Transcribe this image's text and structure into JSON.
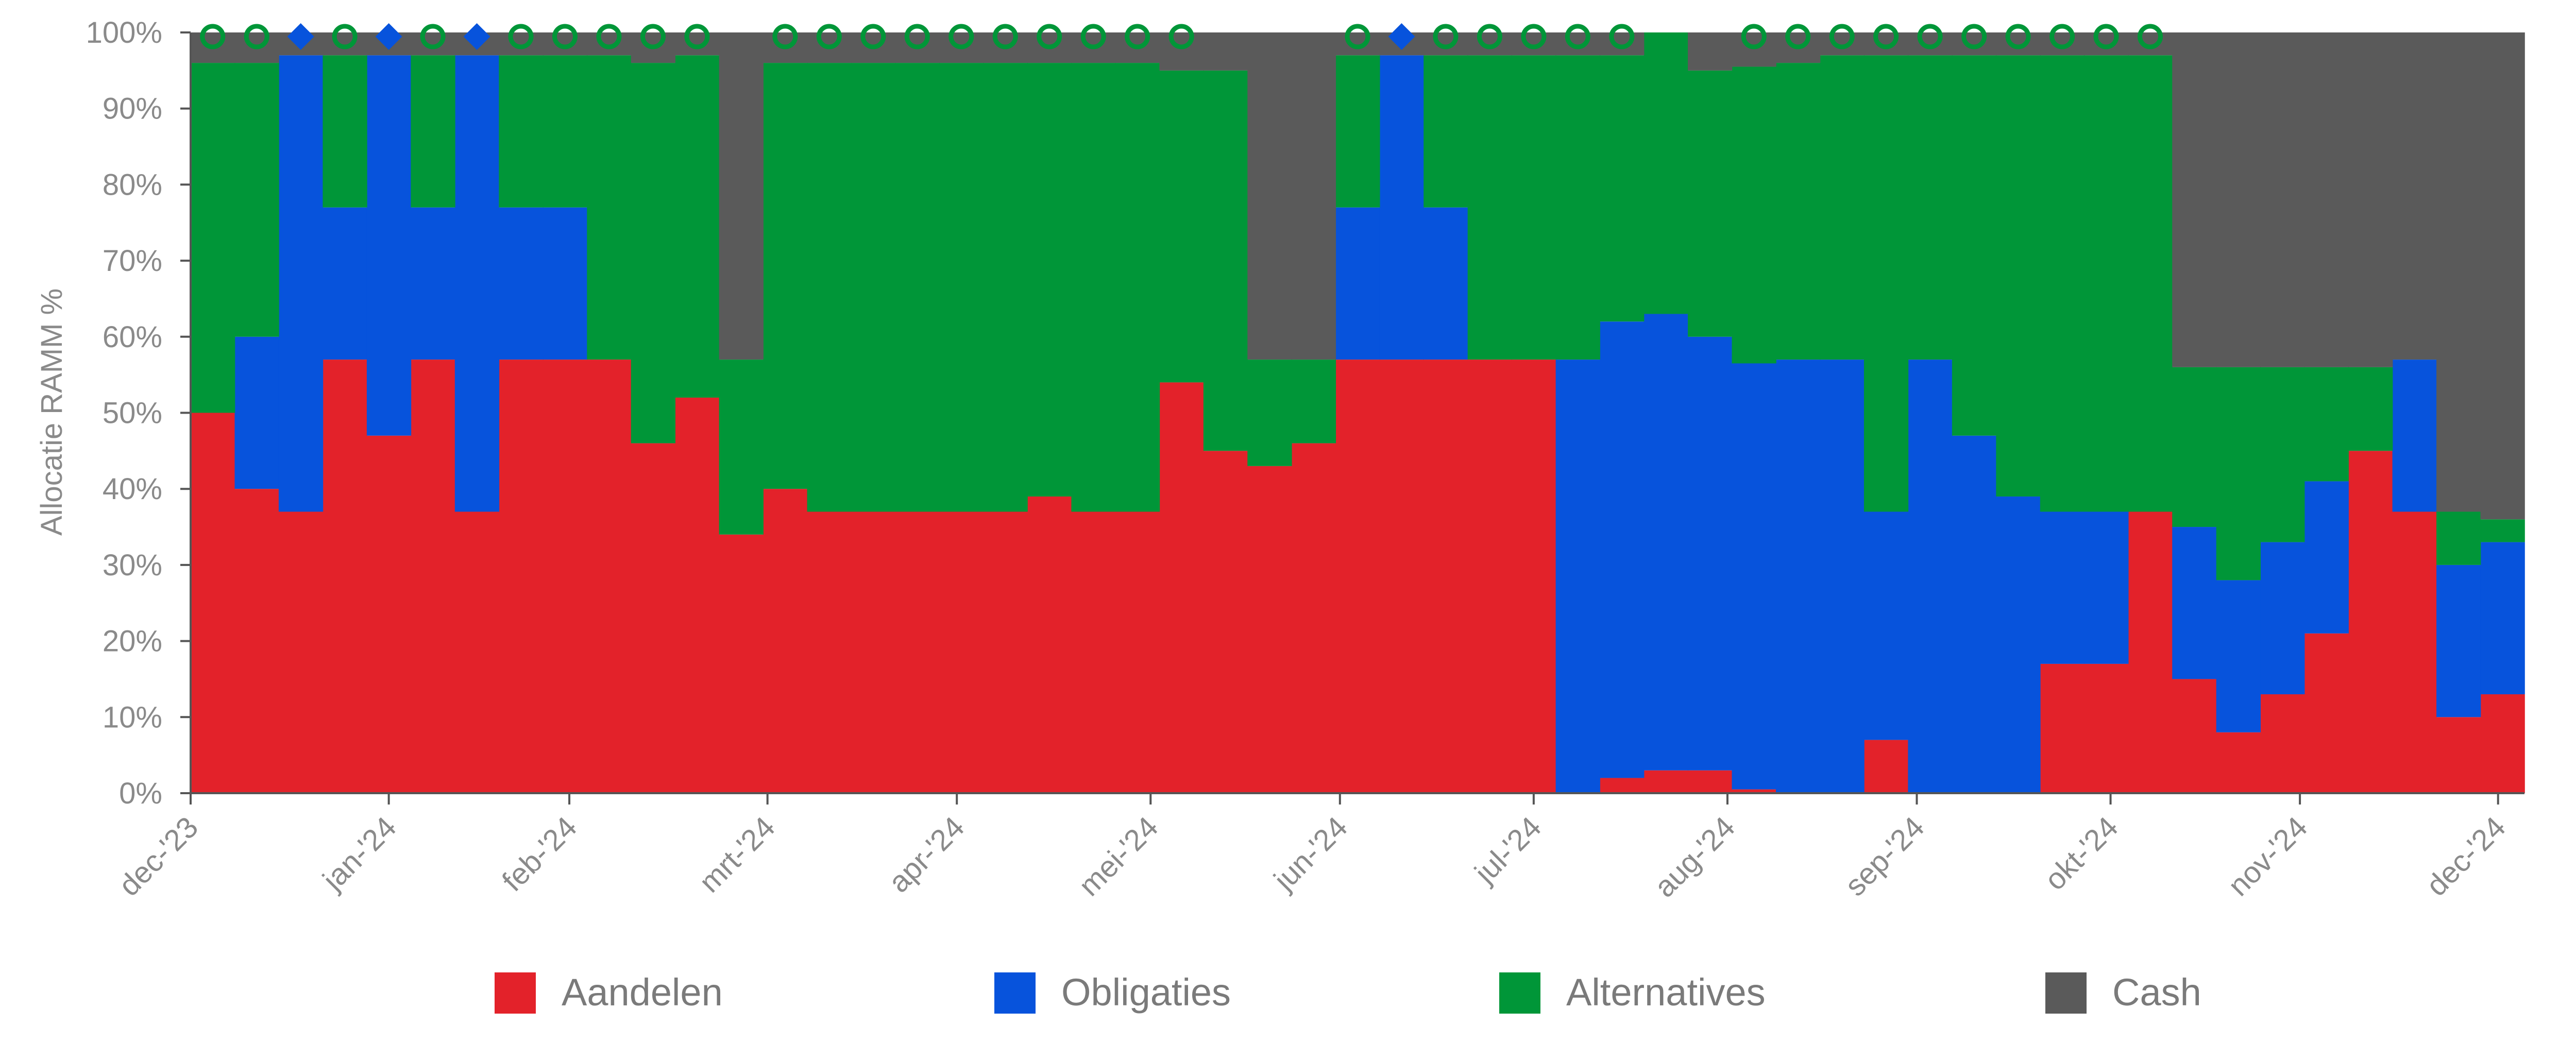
{
  "chart_data": {
    "type": "area",
    "stacked": true,
    "step": true,
    "title": "",
    "xlabel": "",
    "ylabel": "Allocatie RAMM %",
    "ylim": [
      0,
      100
    ],
    "y_ticks": [
      "0%",
      "10%",
      "20%",
      "30%",
      "40%",
      "50%",
      "60%",
      "70%",
      "80%",
      "90%",
      "100%"
    ],
    "x_ticks": [
      "dec-'23",
      "jan-'24",
      "feb-'24",
      "mrt-'24",
      "apr-'24",
      "mei-'24",
      "jun-'24",
      "jul-'24",
      "aug-'24",
      "sep-'24",
      "okt-'24",
      "nov-'24",
      "dec-'24"
    ],
    "x_tick_weeks": [
      0,
      4.5,
      8.6,
      13.1,
      17.4,
      21.8,
      26.1,
      30.5,
      34.9,
      39.2,
      43.6,
      47.9,
      52.4
    ],
    "periods": 53,
    "grid": false,
    "legend_position": "bottom",
    "colors": {
      "Aandelen": "#e3222a",
      "Obligaties": "#0753dc",
      "Alternatives": "#009638",
      "Cash": "#5a5a5a",
      "axis": "#555555"
    },
    "series": [
      {
        "name": "Aandelen",
        "values": [
          50,
          40,
          37,
          57,
          47,
          57,
          37,
          57,
          57,
          57,
          46,
          52,
          34,
          40,
          37,
          37,
          37,
          37,
          37,
          39,
          37,
          37,
          54,
          45,
          43,
          46,
          57,
          57,
          57,
          57,
          57,
          0,
          2,
          3,
          3,
          0.5,
          0,
          0,
          7,
          0,
          0,
          0,
          17,
          17,
          37,
          15,
          8,
          13,
          21,
          45,
          37,
          10,
          13
        ]
      },
      {
        "name": "Obligaties",
        "values": [
          0,
          20,
          60,
          20,
          50,
          20,
          60,
          20,
          20,
          0,
          0,
          0,
          0,
          0,
          0,
          0,
          0,
          0,
          0,
          0,
          0,
          0,
          0,
          0,
          0,
          0,
          20,
          40,
          20,
          0,
          0,
          57,
          60,
          60,
          57,
          56,
          57,
          57,
          30,
          57,
          47,
          39,
          20,
          20,
          0,
          20,
          20,
          20,
          20,
          0,
          20,
          20,
          20
        ]
      },
      {
        "name": "Alternatives",
        "values": [
          46,
          36,
          0,
          20,
          0,
          20,
          0,
          20,
          20,
          40,
          50,
          45,
          23,
          56,
          59,
          59,
          59,
          59,
          59,
          57,
          59,
          59,
          41,
          50,
          14,
          11,
          20,
          0,
          20,
          40,
          40,
          40,
          35,
          38,
          35,
          39,
          39,
          40,
          60,
          40,
          50,
          58,
          60,
          60,
          60,
          21,
          28,
          23,
          15,
          11,
          0,
          7,
          3
        ]
      },
      {
        "name": "Cash",
        "values": [
          4,
          4,
          3,
          3,
          3,
          3,
          3,
          3,
          3,
          3,
          4,
          3,
          43,
          4,
          4,
          4,
          4,
          4,
          4,
          4,
          4,
          4,
          5,
          5,
          43,
          43,
          3,
          3,
          3,
          3,
          3,
          3,
          3,
          0,
          5,
          4.5,
          4,
          3,
          3,
          3,
          3,
          3,
          3,
          3,
          3,
          44,
          44,
          44,
          44,
          44,
          43,
          63,
          64
        ]
      }
    ],
    "markers": [
      "green",
      "green",
      "blue",
      "green",
      "blue",
      "green",
      "blue",
      "green",
      "green",
      "green",
      "green",
      "green",
      null,
      "green",
      "green",
      "green",
      "green",
      "green",
      "green",
      "green",
      "green",
      "green",
      "green",
      null,
      null,
      null,
      "green",
      "blue",
      "green",
      "green",
      "green",
      "green",
      "green",
      null,
      null,
      "green",
      "green",
      "green",
      "green",
      "green",
      "green",
      "green",
      "green",
      "green",
      "green",
      null,
      null,
      null,
      null,
      null,
      null,
      null,
      null
    ]
  }
}
